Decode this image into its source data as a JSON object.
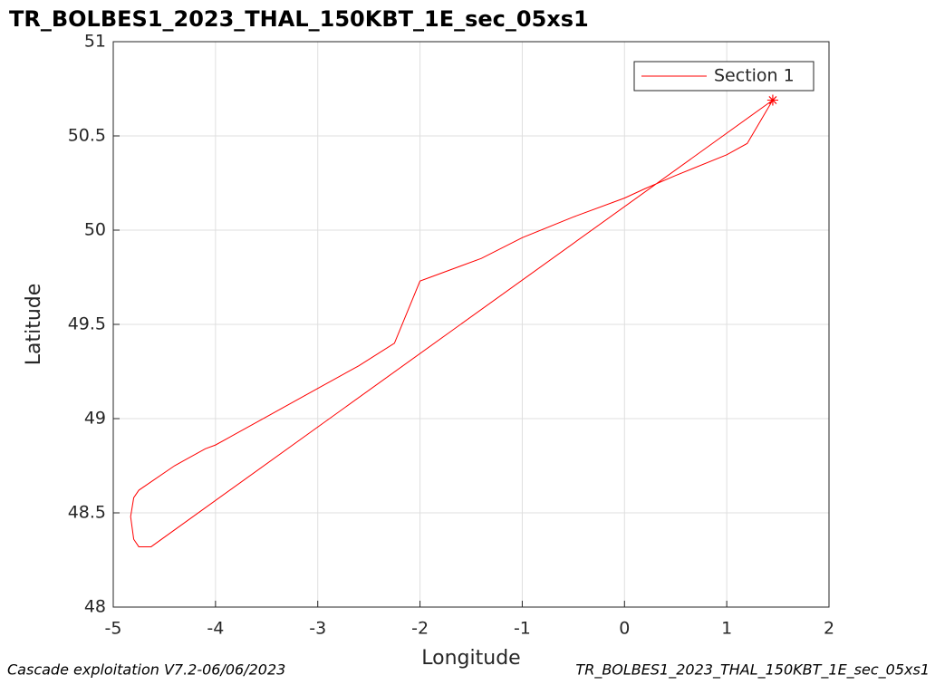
{
  "chart_data": {
    "type": "line",
    "title": "TR_BOLBES1_2023_THAL_150KBT_1E_sec_05xs1",
    "x_label": "Longitude",
    "y_label": "Latitude",
    "series": [
      {
        "name": "Section 1",
        "color": "#ff0000",
        "x": [
          1.45,
          1.2,
          1.0,
          0.5,
          0.2,
          0,
          -0.5,
          -1.0,
          -1.4,
          -1.6,
          -1.9,
          -2.0,
          -2.25,
          -2.6,
          -3.0,
          -3.5,
          -4.0,
          -4.1,
          -4.4,
          -4.75,
          -4.8,
          -4.83,
          -4.8,
          -4.75,
          -4.63,
          1.45
        ],
        "values": [
          50.69,
          50.46,
          50.4,
          50.29,
          50.22,
          50.17,
          50.07,
          49.96,
          49.85,
          49.81,
          49.75,
          49.73,
          49.4,
          49.28,
          49.16,
          49.01,
          48.86,
          48.84,
          48.75,
          48.62,
          48.58,
          48.48,
          48.36,
          48.32,
          48.32,
          50.69
        ]
      }
    ],
    "endpoint_marker": "asterisk",
    "xlim": [
      -5,
      2
    ],
    "xticks": [
      -5,
      -4,
      -3,
      -2,
      -1,
      0,
      1,
      2
    ],
    "ylim": [
      48,
      51
    ],
    "yticks": [
      48,
      48.5,
      49,
      49.5,
      50,
      50.5,
      51
    ],
    "grid": true,
    "legend": "upper right"
  },
  "footer": {
    "left": "Cascade exploitation V7.2-06/06/2023",
    "right": "TR_BOLBES1_2023_THAL_150KBT_1E_sec_05xs1"
  }
}
